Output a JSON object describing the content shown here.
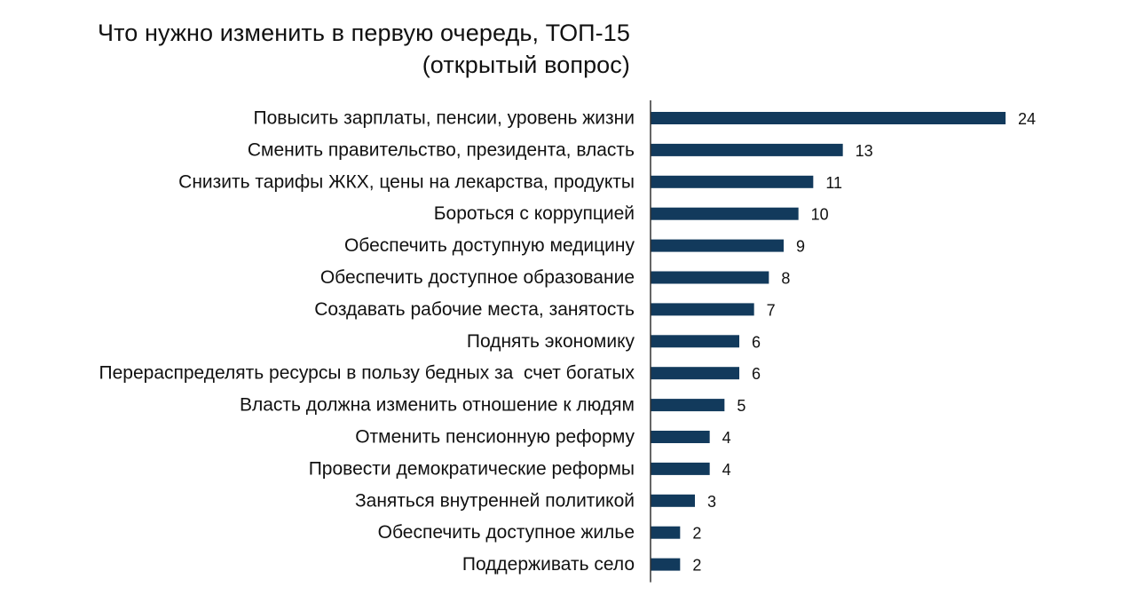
{
  "chart_data": {
    "type": "bar",
    "orientation": "horizontal",
    "title": "Что нужно изменить в первую очередь, ТОП-15",
    "subtitle": "(открытый вопрос)",
    "categories": [
      "Повысить зарплаты, пенсии, уровень жизни",
      "Сменить правительство, президента, власть",
      "Снизить тарифы ЖКХ, цены на лекарства, продукты",
      "Бороться с коррупцией",
      "Обеспечить доступную медицину",
      "Обеспечить доступное образование",
      "Создавать рабочие места, занятость",
      "Поднять экономику",
      "Перераспределять ресурсы в пользу бедных за  счет богатых",
      "Власть должна изменить отношение к людям",
      "Отменить пенсионную реформу",
      "Провести демократические реформы",
      "Заняться внутренней политикой",
      "Обеспечить доступное жилье",
      "Поддерживать село"
    ],
    "values": [
      24,
      13,
      11,
      10,
      9,
      8,
      7,
      6,
      6,
      5,
      4,
      4,
      3,
      2,
      2
    ],
    "value_labels": [
      "24",
      "13",
      "11",
      "10",
      "9",
      "8",
      "7",
      "6",
      "6",
      "5",
      "4",
      "4",
      "3",
      "2",
      "2"
    ],
    "xlim": [
      0,
      24
    ],
    "grid": false,
    "legend": "none",
    "bar_color": "#123a5c",
    "axis_color": "#333333"
  }
}
